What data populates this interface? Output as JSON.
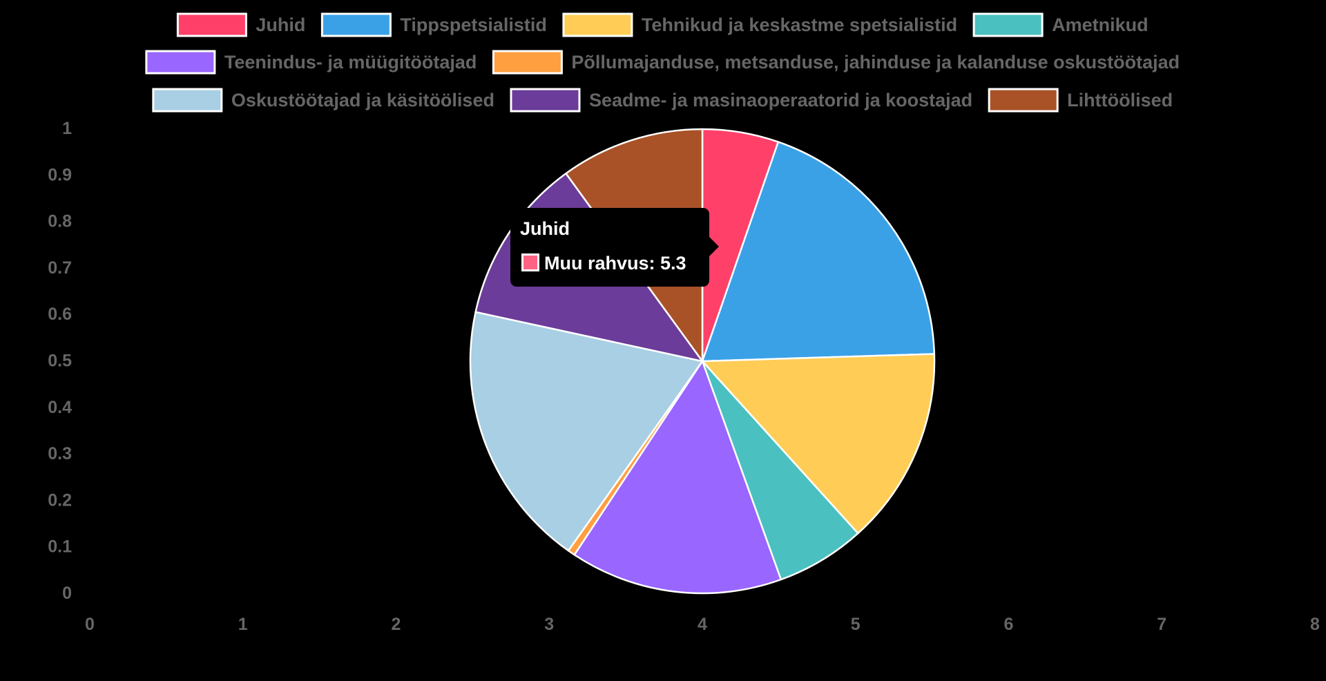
{
  "chart_data": {
    "type": "pie",
    "categories": [
      "Juhid",
      "Tippspetsialistid",
      "Tehnikud ja keskastme spetsialistid",
      "Ametnikud",
      "Teenindus- ja müügitöötajad",
      "Põllumajanduse, metsanduse, jahinduse ja kalanduse oskustöötajad",
      "Oskustöötajad ja käsitöölised",
      "Seadme- ja masinaoperaatorid ja koostajad",
      "Lihttöölised"
    ],
    "series": [
      {
        "name": "Muu rahvus",
        "values": [
          5.3,
          19.2,
          13.8,
          6.2,
          14.8,
          0.5,
          18.6,
          11.6,
          10.0
        ]
      }
    ],
    "colors": [
      "#ff4069",
      "#3ba1e7",
      "#ffcd56",
      "#4bc0c0",
      "#9966ff",
      "#ff9f40",
      "#a8cfe3",
      "#6b3c99",
      "#a95228"
    ],
    "x_ticks": [
      "0",
      "1",
      "2",
      "3",
      "4",
      "5",
      "6",
      "7",
      "8"
    ],
    "y_ticks": [
      "0",
      "0.1",
      "0.2",
      "0.3",
      "0.4",
      "0.5",
      "0.6",
      "0.7",
      "0.8",
      "0.9",
      "1"
    ],
    "xlim": [
      0,
      8
    ],
    "ylim": [
      0,
      1
    ],
    "legend_position": "top",
    "tooltip": {
      "title": "Juhid",
      "label": "Muu rahvus: 5.3",
      "swatch_color": "#ff6384"
    }
  }
}
